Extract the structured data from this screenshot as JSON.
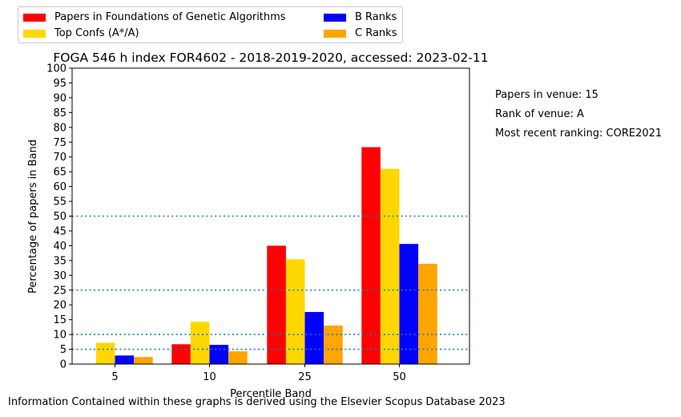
{
  "chart_data": {
    "type": "bar",
    "title": "FOGA 546 h index FOR4602 - 2018-2019-2020, accessed: 2023-02-11",
    "xlabel": "Percentile Band",
    "ylabel": "Percentage of papers in Band",
    "categories": [
      "5",
      "10",
      "25",
      "50"
    ],
    "ylim": [
      0,
      100
    ],
    "yticks": [
      0,
      5,
      10,
      15,
      20,
      25,
      30,
      35,
      40,
      45,
      50,
      55,
      60,
      65,
      70,
      75,
      80,
      85,
      90,
      95,
      100
    ],
    "reference_lines": [
      5,
      10,
      25,
      50
    ],
    "reference_line_color": "#1f77b4",
    "grid": false,
    "legend_position": "top-left, above plot, two columns",
    "series": [
      {
        "name": "Papers in Foundations of Genetic Algorithms",
        "color": "#ff0000",
        "values": [
          0,
          6.7,
          40.0,
          73.3
        ]
      },
      {
        "name": "Top Confs (A*/A)",
        "color": "#ffd700",
        "values": [
          7.2,
          14.3,
          35.4,
          66.0
        ]
      },
      {
        "name": "B Ranks",
        "color": "#0000ff",
        "values": [
          2.9,
          6.5,
          17.6,
          40.6
        ]
      },
      {
        "name": "C Ranks",
        "color": "#ffa500",
        "values": [
          2.4,
          4.3,
          13.0,
          33.9
        ]
      }
    ]
  },
  "side_notes": {
    "papers": "Papers in venue: 15",
    "rank": "Rank of venue: A",
    "ranking": "Most recent ranking: CORE2021"
  },
  "footer": "Information Contained within these graphs is derived using the Elsevier Scopus Database 2023"
}
